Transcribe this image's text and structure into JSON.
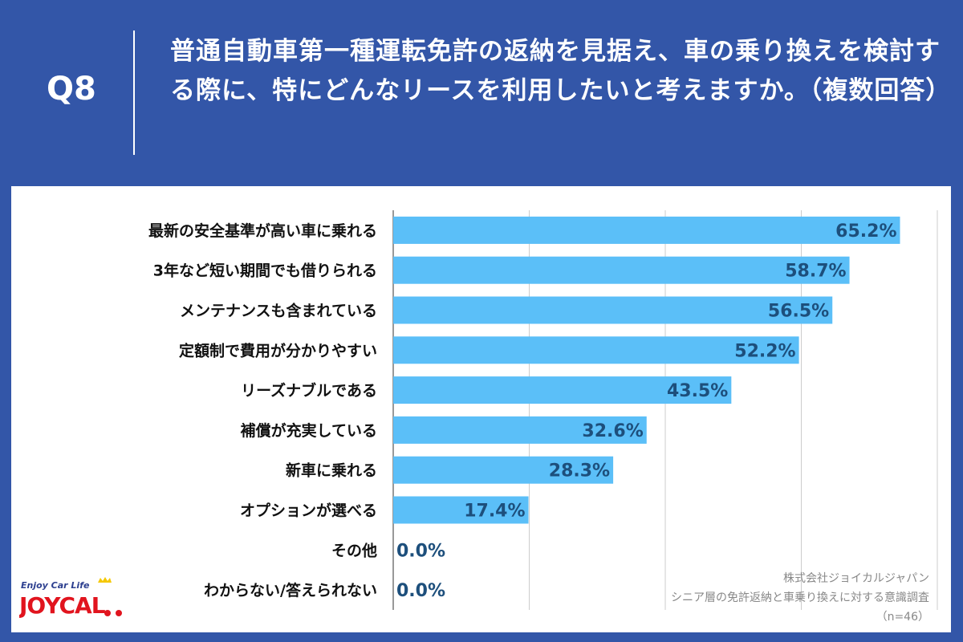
{
  "header": {
    "q_label": "Q8",
    "title": "普通自動車第一種運転免許の返納を見据え、車の乗り換えを検討する際に、特にどんなリースを利用したいと考えますか。（複数回答）"
  },
  "colors": {
    "background": "#3356a8",
    "bar": "#5bbff8",
    "value_label": "#1d4f7c"
  },
  "chart_data": {
    "type": "bar",
    "orientation": "horizontal",
    "categories": [
      "最新の安全基準が高い車に乗れる",
      "3年など短い期間でも借りられる",
      "メンテナンスも含まれている",
      "定額制で費用が分かりやすい",
      "リーズナブルである",
      "補償が充実している",
      "新車に乗れる",
      "オプションが選べる",
      "その他",
      "わからない/答えられない"
    ],
    "values": [
      65.2,
      58.7,
      56.5,
      52.2,
      43.5,
      32.6,
      28.3,
      17.4,
      0.0,
      0.0
    ],
    "value_labels": [
      "65.2%",
      "58.7%",
      "56.5%",
      "52.2%",
      "43.5%",
      "32.6%",
      "28.3%",
      "17.4%",
      "0.0%",
      "0.0%"
    ],
    "xlim": [
      0,
      70
    ],
    "grid": true,
    "gridline_step": 17.5
  },
  "credit": {
    "company": "株式会社ジョイカルジャパン",
    "survey": "シニア層の免許返納と車乗り換えに対する意識調査",
    "n": "（n=46）"
  },
  "logo": {
    "tagline": "Enjoy Car Life",
    "name": "JOYCAL"
  }
}
